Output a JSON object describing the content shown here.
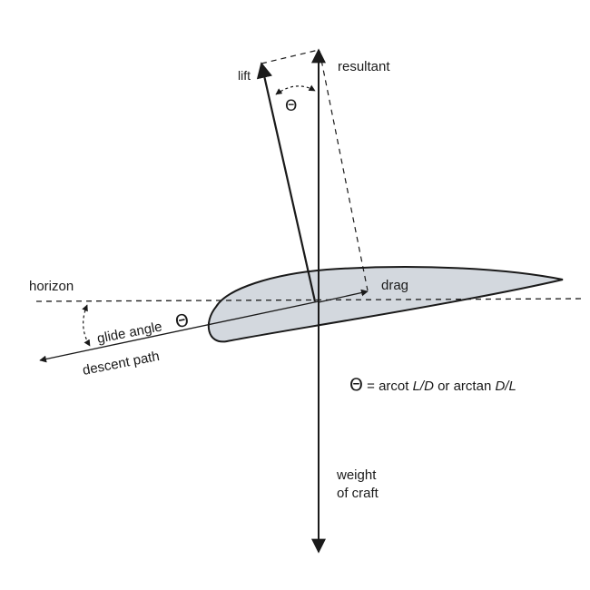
{
  "labels": {
    "lift": "lift",
    "resultant": "resultant",
    "theta_symbol": "Θ",
    "horizon": "horizon",
    "drag": "drag",
    "glide_angle": "glide angle",
    "descent_path": "descent path",
    "formula_theta": "Θ",
    "formula_eq": " = arcot ",
    "formula_ld": "L/D",
    "formula_or": " or arctan ",
    "formula_dl": "D/L",
    "weight_line1": "weight",
    "weight_line2": "of craft"
  },
  "colors": {
    "ink": "#1a1a1a",
    "airfoil_fill": "#d3d8de",
    "background": "#ffffff"
  }
}
